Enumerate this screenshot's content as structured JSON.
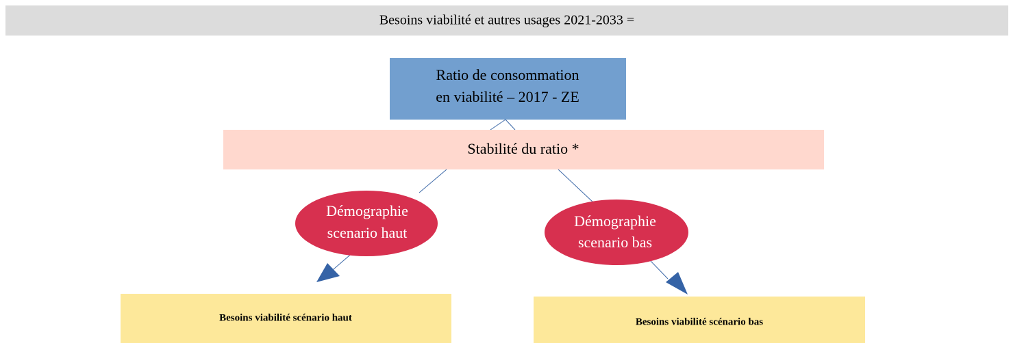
{
  "header": {
    "title": "Besoins viabilité et autres usages 2021-2033 ="
  },
  "nodes": [
    {
      "label": "Ratio de consommation\nen viabilité – 2017 - ZE"
    },
    {
      "label": "Stabilité du ratio  *"
    },
    {
      "label": "Démographie\nscenario haut"
    },
    {
      "label": "Démographie\nscenario bas"
    },
    {
      "label": "Besoins viabilité scénario haut"
    },
    {
      "label": "Besoins viabilité scénario bas"
    }
  ]
}
